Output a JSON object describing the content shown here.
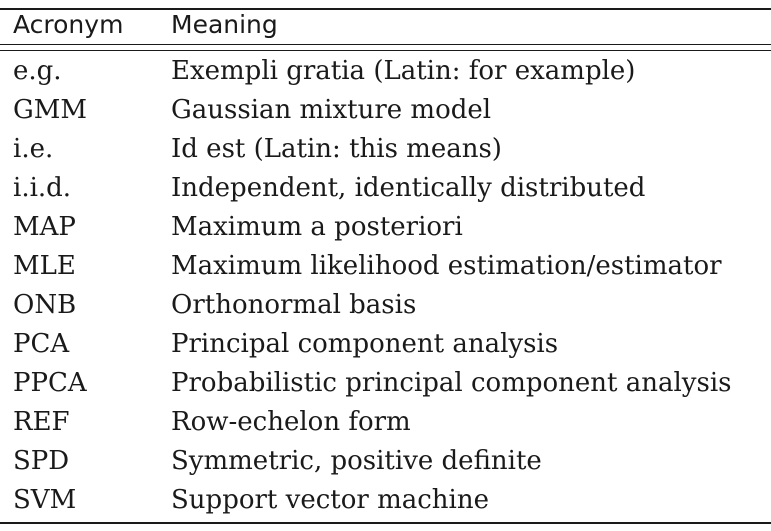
{
  "table": {
    "headers": {
      "acronym": "Acronym",
      "meaning": "Meaning"
    },
    "rows": [
      {
        "acronym": "e.g.",
        "meaning": "Exempli gratia (Latin: for example)"
      },
      {
        "acronym": "GMM",
        "meaning": "Gaussian mixture model"
      },
      {
        "acronym": "i.e.",
        "meaning": "Id est (Latin: this means)"
      },
      {
        "acronym": "i.i.d.",
        "meaning": "Independent, identically distributed"
      },
      {
        "acronym": "MAP",
        "meaning": "Maximum a posteriori"
      },
      {
        "acronym": "MLE",
        "meaning": "Maximum likelihood estimation/estimator"
      },
      {
        "acronym": "ONB",
        "meaning": "Orthonormal basis"
      },
      {
        "acronym": "PCA",
        "meaning": "Principal component analysis"
      },
      {
        "acronym": "PPCA",
        "meaning": "Probabilistic principal component analysis"
      },
      {
        "acronym": "REF",
        "meaning": "Row-echelon form"
      },
      {
        "acronym": "SPD",
        "meaning": "Symmetric, positive definite"
      },
      {
        "acronym": "SVM",
        "meaning": "Support vector machine"
      }
    ]
  }
}
